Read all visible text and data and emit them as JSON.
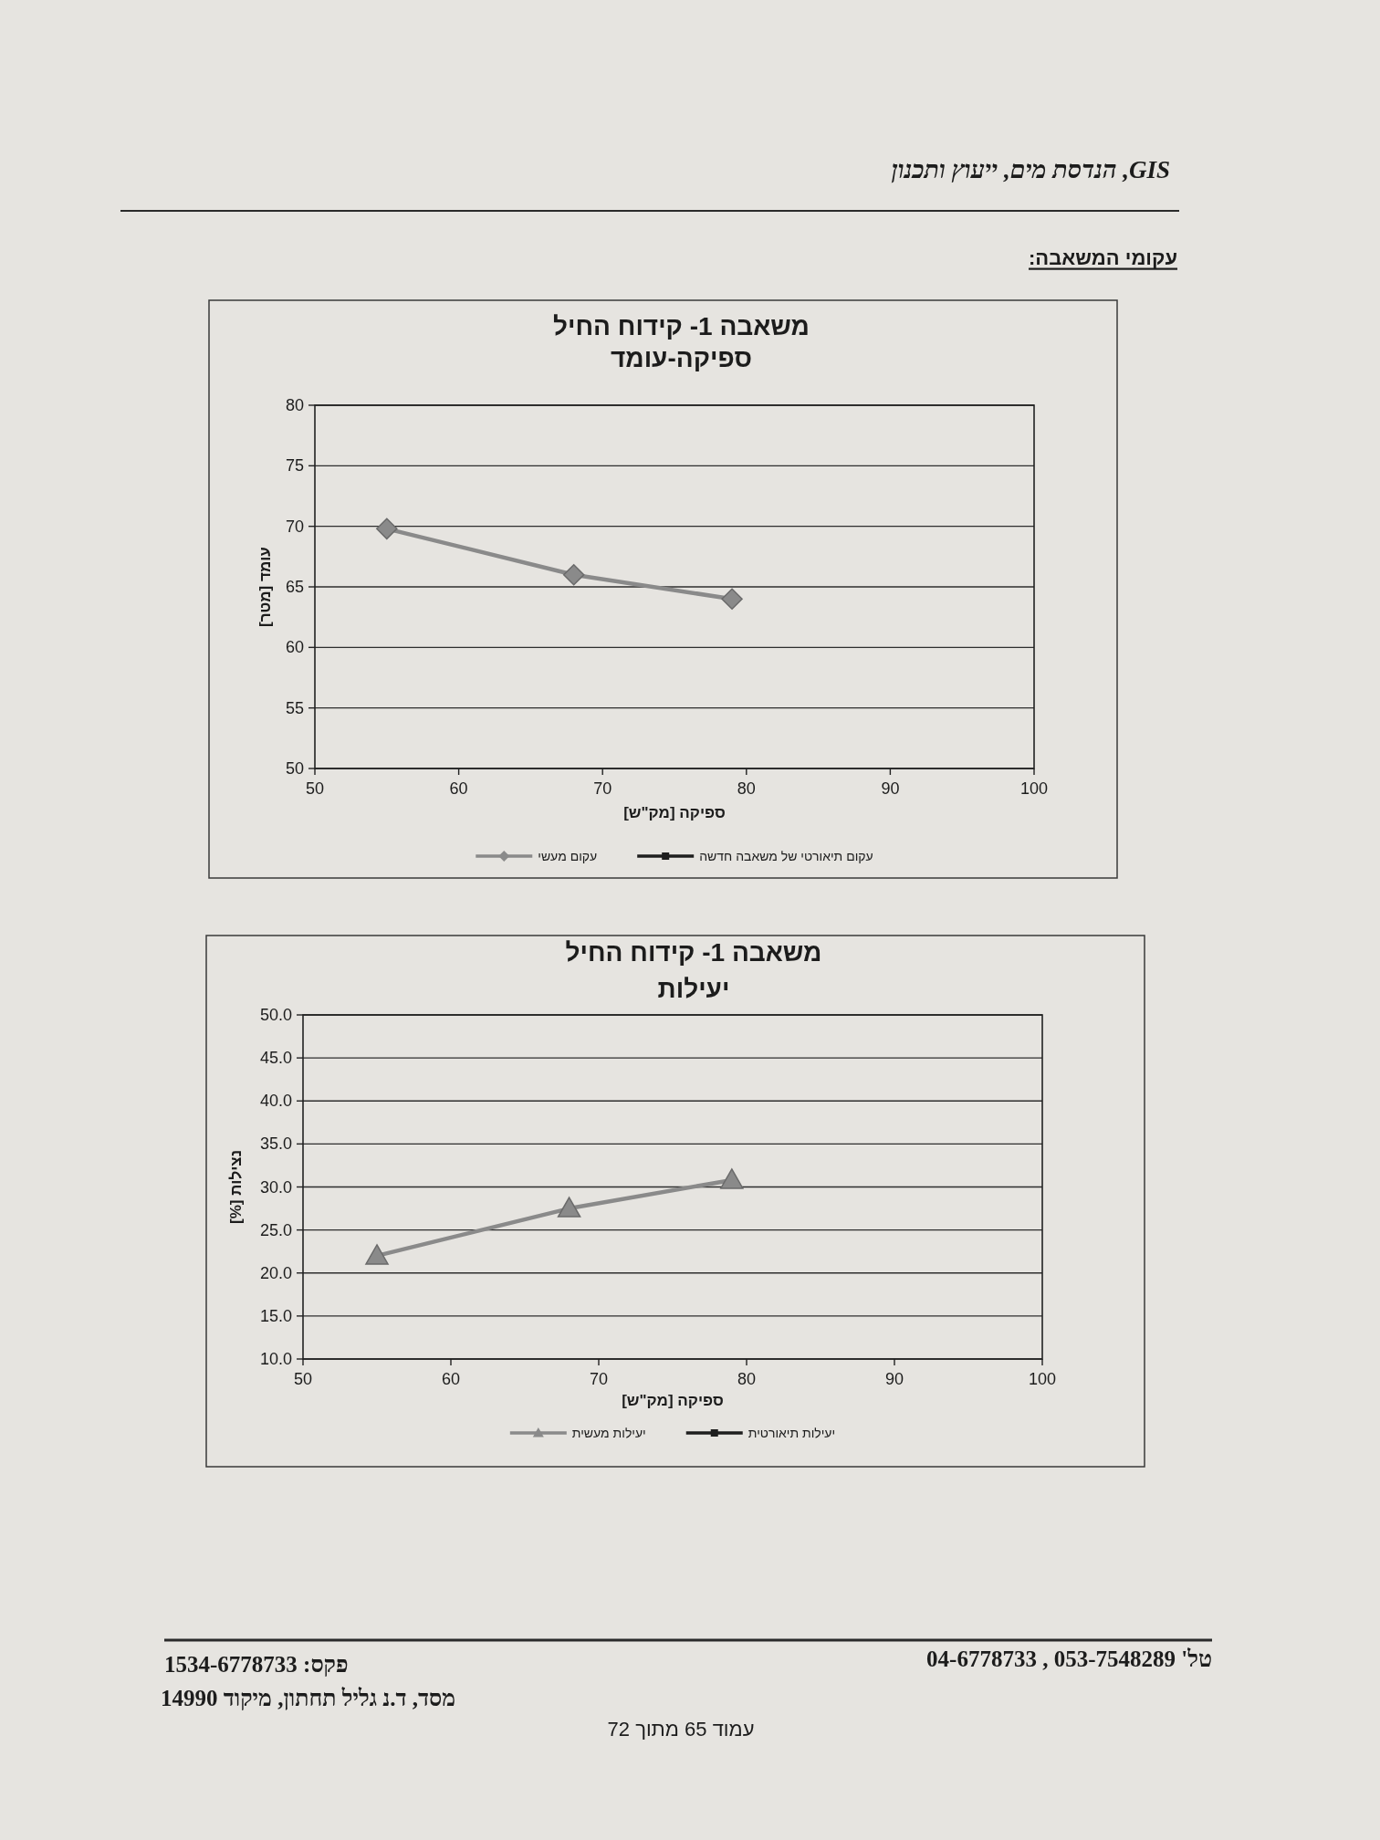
{
  "chart_data": [
    {
      "type": "line",
      "title": "משאבה 1- קידוח החיל",
      "subtitle": "ספיקה-עומד",
      "xlabel": "ספיקה [מק\"ש]",
      "ylabel": "עומד [מטר]",
      "x": [
        55,
        68,
        79
      ],
      "series": [
        {
          "name": "עקום מעשי",
          "color": "#8a8a8a",
          "marker": "diamond",
          "values": [
            69.8,
            66,
            64
          ]
        },
        {
          "name": "עקום תיאורטי של משאבה חדשה",
          "color": "#1e1e1e",
          "marker": "square",
          "values": [
            null,
            null,
            null
          ]
        }
      ],
      "xlim": [
        50,
        100
      ],
      "xticks": [
        50,
        60,
        70,
        80,
        90,
        100
      ],
      "ylim": [
        50,
        80
      ],
      "yticks": [
        50,
        55,
        60,
        65,
        70,
        75,
        80
      ],
      "grid": "y",
      "legend": "bottom",
      "annotations": [
        "GIS, הנדסת מים, ייעוץ ותכנון",
        "עקומי המשאבה:"
      ]
    },
    {
      "type": "line",
      "title": "משאבה 1- קידוח החיל",
      "subtitle": "יעילות",
      "xlabel": "ספיקה [מק\"ש]",
      "ylabel": "נצילות [%]",
      "x": [
        55,
        68,
        79
      ],
      "series": [
        {
          "name": "יעילות מעשית",
          "color": "#8a8a8a",
          "marker": "triangle",
          "values": [
            22,
            27.5,
            30.8
          ]
        },
        {
          "name": "יעילות תיאורטית",
          "color": "#1e1e1e",
          "marker": "square",
          "values": [
            null,
            null,
            null
          ]
        }
      ],
      "xlim": [
        50,
        100
      ],
      "xticks": [
        50,
        60,
        70,
        80,
        90,
        100
      ],
      "ylim": [
        10,
        50
      ],
      "yticks": [
        {
          "value": 10,
          "label": "10.0"
        },
        {
          "value": 15,
          "label": "15.0"
        },
        {
          "value": 20,
          "label": "20.0"
        },
        {
          "value": 25,
          "label": "25.0"
        },
        {
          "value": 30,
          "label": "30.0"
        },
        {
          "value": 35,
          "label": "35.0"
        },
        {
          "value": 40,
          "label": "40.0"
        },
        {
          "value": 45,
          "label": "45.0"
        },
        {
          "value": 50,
          "label": "50.0"
        }
      ],
      "grid": "y",
      "legend": "bottom",
      "annotations": [
        "טל' 053-7548289 , 04-6778733",
        "פקס: 1534-6778733",
        "מסד, ד.נ גליל תחתון, מיקוד 14990",
        "עמוד 65 מתוך 72"
      ]
    }
  ]
}
